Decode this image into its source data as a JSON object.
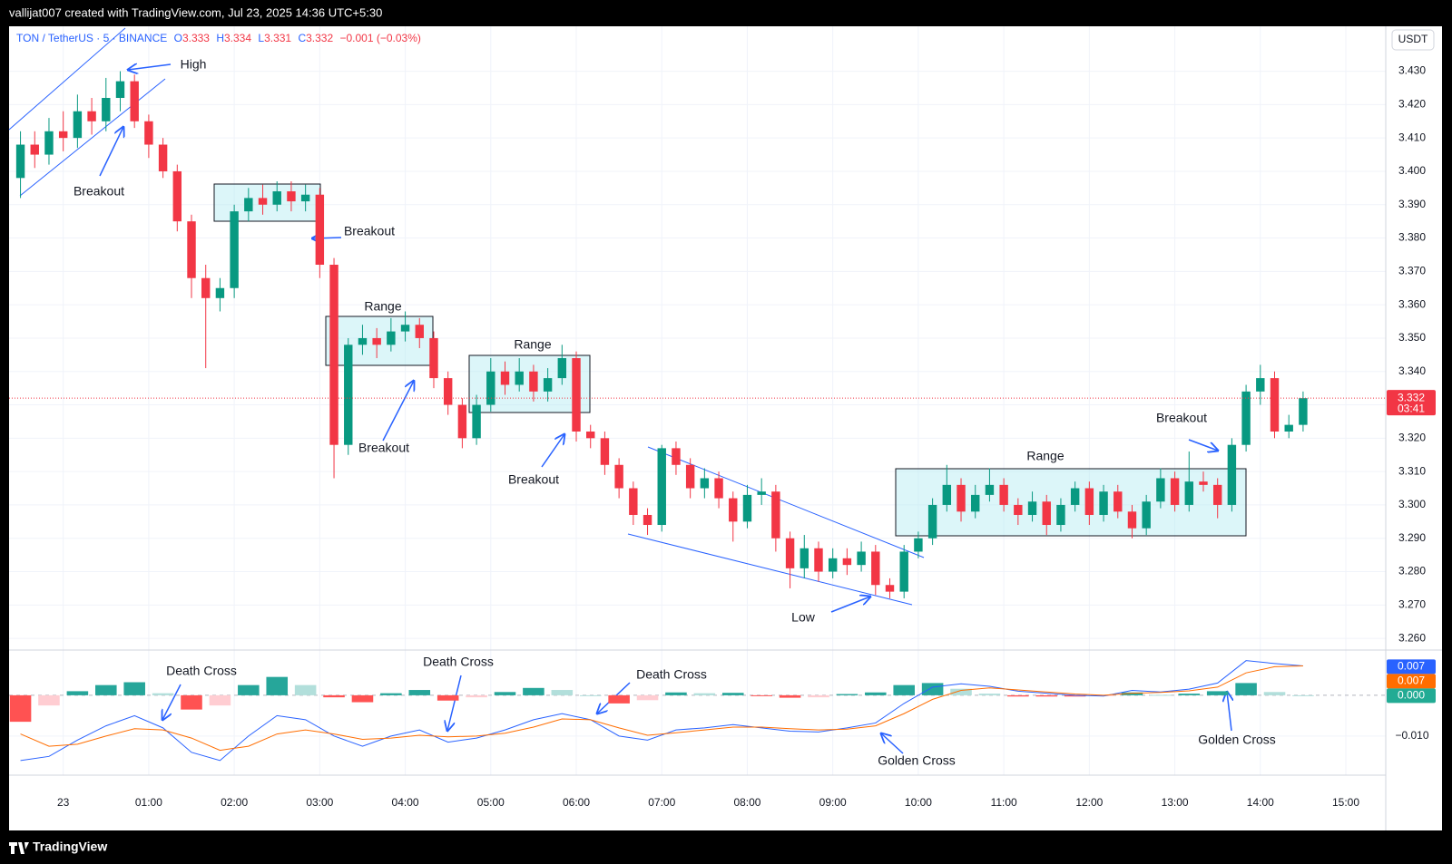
{
  "header": {
    "attribution": "vallijat007 created with TradingView.com, Jul 23, 2025 14:36 UTC+5:30"
  },
  "footer": {
    "logo": "TradingView"
  },
  "chart_data": [
    {
      "type": "candlestick",
      "symbol": "TON / TetherUS · 5 · BINANCE",
      "ohlc_legend": [
        {
          "label": "O",
          "value": 3.333
        },
        {
          "label": "H",
          "value": 3.334
        },
        {
          "label": "L",
          "value": 3.331
        },
        {
          "label": "C",
          "value": 3.332
        }
      ],
      "change": "−0.001 (−0.03%)",
      "currency": "USDT",
      "last_price": 3.332,
      "countdown": "03:41",
      "up_color": "#089981",
      "down_color": "#f23645",
      "grid": true,
      "xlim": [
        -38,
        928
      ],
      "xticks": [
        {
          "value": 0,
          "label": "23"
        },
        {
          "value": 60,
          "label": "01:00"
        },
        {
          "value": 120,
          "label": "02:00"
        },
        {
          "value": 180,
          "label": "03:00"
        },
        {
          "value": 240,
          "label": "04:00"
        },
        {
          "value": 300,
          "label": "05:00"
        },
        {
          "value": 360,
          "label": "06:00"
        },
        {
          "value": 420,
          "label": "07:00"
        },
        {
          "value": 480,
          "label": "08:00"
        },
        {
          "value": 540,
          "label": "09:00"
        },
        {
          "value": 600,
          "label": "10:00"
        },
        {
          "value": 660,
          "label": "11:00"
        },
        {
          "value": 720,
          "label": "12:00"
        },
        {
          "value": 780,
          "label": "13:00"
        },
        {
          "value": 840,
          "label": "14:00"
        },
        {
          "value": 900,
          "label": "15:00"
        }
      ],
      "ylim": [
        3.2565,
        3.4432
      ],
      "yticks": [
        {
          "value": 3.26,
          "label": "3.260"
        },
        {
          "value": 3.27,
          "label": "3.270"
        },
        {
          "value": 3.28,
          "label": "3.280"
        },
        {
          "value": 3.29,
          "label": "3.290"
        },
        {
          "value": 3.3,
          "label": "3.300"
        },
        {
          "value": 3.31,
          "label": "3.310"
        },
        {
          "value": 3.32,
          "label": "3.320"
        },
        {
          "value": 3.33,
          "label": "3.330"
        },
        {
          "value": 3.34,
          "label": "3.340"
        },
        {
          "value": 3.35,
          "label": "3.350"
        },
        {
          "value": 3.36,
          "label": "3.360"
        },
        {
          "value": 3.37,
          "label": "3.370"
        },
        {
          "value": 3.38,
          "label": "3.380"
        },
        {
          "value": 3.39,
          "label": "3.390"
        },
        {
          "value": 3.4,
          "label": "3.400"
        },
        {
          "value": 3.41,
          "label": "3.410"
        },
        {
          "value": 3.42,
          "label": "3.420"
        },
        {
          "value": 3.43,
          "label": "3.430"
        }
      ],
      "annotations": [
        "High",
        "Breakout",
        "Breakout",
        "Range",
        "Breakout",
        "Range",
        "Breakout",
        "Low",
        "Range",
        "Breakout"
      ],
      "x": [
        -30,
        -20,
        -10,
        0,
        10,
        20,
        30,
        40,
        50,
        60,
        70,
        80,
        90,
        100,
        110,
        120,
        130,
        140,
        150,
        160,
        170,
        180,
        190,
        200,
        210,
        220,
        230,
        240,
        250,
        260,
        270,
        280,
        290,
        300,
        310,
        320,
        330,
        340,
        350,
        360,
        370,
        380,
        390,
        400,
        410,
        420,
        430,
        440,
        450,
        460,
        470,
        480,
        490,
        500,
        510,
        520,
        530,
        540,
        550,
        560,
        570,
        580,
        590,
        600,
        610,
        620,
        630,
        640,
        650,
        660,
        670,
        680,
        690,
        700,
        710,
        720,
        730,
        740,
        750,
        760,
        770,
        780,
        790,
        800,
        810,
        820,
        830,
        840,
        850,
        860,
        870
      ],
      "ohlc": [
        [
          3.398,
          3.412,
          3.392,
          3.408
        ],
        [
          3.408,
          3.412,
          3.401,
          3.405
        ],
        [
          3.405,
          3.416,
          3.402,
          3.412
        ],
        [
          3.412,
          3.418,
          3.406,
          3.41
        ],
        [
          3.41,
          3.423,
          3.407,
          3.418
        ],
        [
          3.418,
          3.422,
          3.411,
          3.415
        ],
        [
          3.415,
          3.428,
          3.412,
          3.422
        ],
        [
          3.422,
          3.43,
          3.418,
          3.427
        ],
        [
          3.427,
          3.429,
          3.413,
          3.415
        ],
        [
          3.415,
          3.417,
          3.404,
          3.408
        ],
        [
          3.408,
          3.41,
          3.398,
          3.4
        ],
        [
          3.4,
          3.402,
          3.382,
          3.385
        ],
        [
          3.385,
          3.387,
          3.362,
          3.368
        ],
        [
          3.368,
          3.372,
          3.341,
          3.362
        ],
        [
          3.362,
          3.368,
          3.358,
          3.365
        ],
        [
          3.365,
          3.39,
          3.362,
          3.388
        ],
        [
          3.388,
          3.395,
          3.385,
          3.392
        ],
        [
          3.392,
          3.396,
          3.387,
          3.39
        ],
        [
          3.39,
          3.397,
          3.388,
          3.394
        ],
        [
          3.394,
          3.397,
          3.388,
          3.391
        ],
        [
          3.391,
          3.396,
          3.388,
          3.393
        ],
        [
          3.393,
          3.395,
          3.368,
          3.372
        ],
        [
          3.372,
          3.374,
          3.308,
          3.318
        ],
        [
          3.318,
          3.35,
          3.315,
          3.348
        ],
        [
          3.348,
          3.354,
          3.345,
          3.35
        ],
        [
          3.35,
          3.353,
          3.344,
          3.348
        ],
        [
          3.348,
          3.356,
          3.346,
          3.352
        ],
        [
          3.352,
          3.358,
          3.349,
          3.354
        ],
        [
          3.354,
          3.356,
          3.347,
          3.35
        ],
        [
          3.35,
          3.352,
          3.335,
          3.338
        ],
        [
          3.338,
          3.34,
          3.327,
          3.33
        ],
        [
          3.33,
          3.332,
          3.317,
          3.32
        ],
        [
          3.32,
          3.333,
          3.318,
          3.33
        ],
        [
          3.33,
          3.344,
          3.328,
          3.34
        ],
        [
          3.34,
          3.343,
          3.333,
          3.336
        ],
        [
          3.336,
          3.344,
          3.334,
          3.34
        ],
        [
          3.34,
          3.342,
          3.331,
          3.334
        ],
        [
          3.334,
          3.341,
          3.331,
          3.338
        ],
        [
          3.338,
          3.348,
          3.336,
          3.344
        ],
        [
          3.344,
          3.346,
          3.319,
          3.322
        ],
        [
          3.322,
          3.324,
          3.317,
          3.32
        ],
        [
          3.32,
          3.322,
          3.309,
          3.312
        ],
        [
          3.312,
          3.314,
          3.302,
          3.305
        ],
        [
          3.305,
          3.307,
          3.294,
          3.297
        ],
        [
          3.297,
          3.299,
          3.291,
          3.294
        ],
        [
          3.294,
          3.318,
          3.292,
          3.317
        ],
        [
          3.317,
          3.319,
          3.309,
          3.312
        ],
        [
          3.312,
          3.314,
          3.302,
          3.305
        ],
        [
          3.305,
          3.311,
          3.302,
          3.308
        ],
        [
          3.308,
          3.31,
          3.299,
          3.302
        ],
        [
          3.302,
          3.304,
          3.289,
          3.295
        ],
        [
          3.295,
          3.306,
          3.293,
          3.303
        ],
        [
          3.303,
          3.308,
          3.3,
          3.304
        ],
        [
          3.304,
          3.306,
          3.286,
          3.29
        ],
        [
          3.29,
          3.292,
          3.275,
          3.281
        ],
        [
          3.281,
          3.291,
          3.278,
          3.287
        ],
        [
          3.287,
          3.289,
          3.277,
          3.28
        ],
        [
          3.28,
          3.287,
          3.278,
          3.284
        ],
        [
          3.284,
          3.287,
          3.279,
          3.282
        ],
        [
          3.282,
          3.289,
          3.28,
          3.286
        ],
        [
          3.286,
          3.288,
          3.273,
          3.276
        ],
        [
          3.276,
          3.278,
          3.272,
          3.274
        ],
        [
          3.274,
          3.288,
          3.272,
          3.286
        ],
        [
          3.286,
          3.292,
          3.284,
          3.29
        ],
        [
          3.29,
          3.302,
          3.288,
          3.3
        ],
        [
          3.3,
          3.312,
          3.298,
          3.306
        ],
        [
          3.306,
          3.308,
          3.295,
          3.298
        ],
        [
          3.298,
          3.306,
          3.296,
          3.303
        ],
        [
          3.303,
          3.311,
          3.301,
          3.306
        ],
        [
          3.306,
          3.308,
          3.298,
          3.3
        ],
        [
          3.3,
          3.302,
          3.294,
          3.297
        ],
        [
          3.297,
          3.304,
          3.295,
          3.301
        ],
        [
          3.301,
          3.303,
          3.291,
          3.294
        ],
        [
          3.294,
          3.302,
          3.292,
          3.3
        ],
        [
          3.3,
          3.307,
          3.298,
          3.305
        ],
        [
          3.305,
          3.307,
          3.294,
          3.297
        ],
        [
          3.297,
          3.306,
          3.295,
          3.304
        ],
        [
          3.304,
          3.306,
          3.296,
          3.298
        ],
        [
          3.298,
          3.3,
          3.29,
          3.293
        ],
        [
          3.293,
          3.303,
          3.291,
          3.301
        ],
        [
          3.301,
          3.311,
          3.299,
          3.308
        ],
        [
          3.308,
          3.31,
          3.298,
          3.3
        ],
        [
          3.3,
          3.316,
          3.298,
          3.307
        ],
        [
          3.307,
          3.31,
          3.304,
          3.306
        ],
        [
          3.306,
          3.308,
          3.296,
          3.3
        ],
        [
          3.3,
          3.32,
          3.298,
          3.318
        ],
        [
          3.318,
          3.336,
          3.316,
          3.334
        ],
        [
          3.334,
          3.342,
          3.33,
          3.338
        ],
        [
          3.338,
          3.34,
          3.32,
          3.322
        ],
        [
          3.322,
          3.327,
          3.32,
          3.324
        ],
        [
          3.324,
          3.334,
          3.322,
          3.332
        ]
      ]
    },
    {
      "type": "macd",
      "ylim": [
        -0.0196,
        0.0111
      ],
      "yticks": [
        {
          "value": -0.01,
          "label": "−0.010"
        }
      ],
      "badges": [
        {
          "value": 0.007,
          "color": "#2962ff"
        },
        {
          "value": 0.007,
          "color": "#ff6d00"
        },
        {
          "value": 0,
          "label": "0.000",
          "color": "#22ab94"
        }
      ],
      "annotations": [
        "Death Cross",
        "Death Cross",
        "Death Cross",
        "Golden Cross",
        "Golden Cross"
      ],
      "x": [
        -30,
        -10,
        10,
        30,
        50,
        70,
        90,
        110,
        130,
        150,
        170,
        190,
        210,
        230,
        250,
        270,
        290,
        310,
        330,
        350,
        370,
        390,
        410,
        430,
        450,
        470,
        490,
        510,
        530,
        550,
        570,
        590,
        610,
        630,
        650,
        670,
        690,
        710,
        730,
        750,
        770,
        790,
        810,
        830,
        850,
        870
      ],
      "macd": {
        "color": "#2962ff",
        "values": [
          -0.016,
          -0.015,
          -0.011,
          -0.0075,
          -0.005,
          -0.008,
          -0.014,
          -0.016,
          -0.01,
          -0.005,
          -0.006,
          -0.01,
          -0.0125,
          -0.01,
          -0.0085,
          -0.0115,
          -0.0105,
          -0.0085,
          -0.006,
          -0.0045,
          -0.006,
          -0.01,
          -0.011,
          -0.0085,
          -0.008,
          -0.0072,
          -0.008,
          -0.0088,
          -0.009,
          -0.008,
          -0.0068,
          -0.002,
          0.002,
          0.0028,
          0.0022,
          0.001,
          0.0005,
          0,
          -0.0002,
          0.0012,
          0.0008,
          0.0015,
          0.003,
          0.0085,
          0.0078,
          0.0072
        ]
      },
      "signal": {
        "color": "#ff6d00",
        "values": [
          -0.0095,
          -0.0125,
          -0.012,
          -0.01,
          -0.0082,
          -0.0085,
          -0.0105,
          -0.0135,
          -0.0125,
          -0.0095,
          -0.0085,
          -0.0095,
          -0.0108,
          -0.0105,
          -0.0098,
          -0.0102,
          -0.01,
          -0.0093,
          -0.0078,
          -0.0058,
          -0.006,
          -0.008,
          -0.0098,
          -0.0092,
          -0.0085,
          -0.0078,
          -0.0078,
          -0.0082,
          -0.0085,
          -0.0083,
          -0.0075,
          -0.0045,
          -0.001,
          0.0012,
          0.0018,
          0.0013,
          0.0008,
          0.0003,
          0,
          0.0005,
          0.0007,
          0.0011,
          0.002,
          0.0055,
          0.007,
          0.0072
        ]
      },
      "histogram": {
        "colors": [
          "#26a69a",
          "#b2dfdb",
          "#ff5252",
          "#ffcdd2"
        ],
        "values": [
          -0.0065,
          -0.0025,
          0.001,
          0.0025,
          0.0032,
          0.0005,
          -0.0035,
          -0.0025,
          0.0025,
          0.0045,
          0.0025,
          -0.0005,
          -0.0017,
          0.0005,
          0.0013,
          -0.0013,
          -0.0005,
          0.0008,
          0.0018,
          0.0013,
          0,
          -0.002,
          -0.0012,
          0.0007,
          0.0005,
          0.0006,
          -0.0002,
          -0.0006,
          -0.0005,
          0.0003,
          0.0007,
          0.0025,
          0.003,
          0.0016,
          0.0004,
          -0.0003,
          -0.0003,
          -0.0003,
          -0.0002,
          0.0007,
          0.0001,
          0.0004,
          0.001,
          0.003,
          0.0008,
          0
        ]
      }
    }
  ]
}
